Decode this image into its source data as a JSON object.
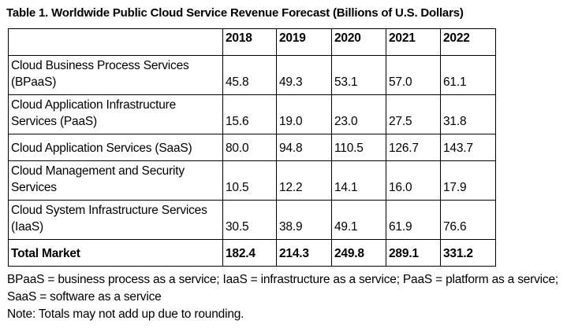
{
  "title": "Table 1. Worldwide Public Cloud Service Revenue Forecast (Billions of U.S. Dollars)",
  "table": {
    "corner_label": "",
    "years": [
      "2018",
      "2019",
      "2020",
      "2021",
      "2022"
    ],
    "rows": [
      {
        "label": "Cloud Business Process Services (BPaaS)",
        "values": [
          "45.8",
          "49.3",
          "53.1",
          "57.0",
          "61.1"
        ]
      },
      {
        "label": "Cloud Application Infrastructure Services (PaaS)",
        "values": [
          "15.6",
          "19.0",
          "23.0",
          "27.5",
          "31.8"
        ]
      },
      {
        "label": "Cloud Application Services (SaaS)",
        "values": [
          "80.0",
          "94.8",
          "110.5",
          "126.7",
          "143.7"
        ]
      },
      {
        "label": "Cloud Management and Security Services",
        "values": [
          "10.5",
          "12.2",
          "14.1",
          "16.0",
          "17.9"
        ]
      },
      {
        "label": "Cloud System Infrastructure Services (IaaS)",
        "values": [
          "30.5",
          "38.9",
          "49.1",
          "61.9",
          "76.6"
        ]
      }
    ],
    "total": {
      "label": "Total Market",
      "values": [
        "182.4",
        "214.3",
        "249.8",
        "289.1",
        "331.2"
      ]
    }
  },
  "footnotes": [
    "BPaaS = business process as a service; IaaS = infrastructure as a service; PaaS = platform as a service; SaaS = software as a service",
    "Note: Totals may not add up due to rounding."
  ],
  "colors": {
    "text": "#000000",
    "background": "#ffffff",
    "border": "#000000"
  },
  "chart_data": {
    "type": "table",
    "title": "Table 1. Worldwide Public Cloud Service Revenue Forecast (Billions of U.S. Dollars)",
    "unit": "Billions of U.S. Dollars",
    "categories": [
      "2018",
      "2019",
      "2020",
      "2021",
      "2022"
    ],
    "series": [
      {
        "name": "Cloud Business Process Services (BPaaS)",
        "values": [
          45.8,
          49.3,
          53.1,
          57.0,
          61.1
        ]
      },
      {
        "name": "Cloud Application Infrastructure Services (PaaS)",
        "values": [
          15.6,
          19.0,
          23.0,
          27.5,
          31.8
        ]
      },
      {
        "name": "Cloud Application Services (SaaS)",
        "values": [
          80.0,
          94.8,
          110.5,
          126.7,
          143.7
        ]
      },
      {
        "name": "Cloud Management and Security Services",
        "values": [
          10.5,
          12.2,
          14.1,
          16.0,
          17.9
        ]
      },
      {
        "name": "Cloud System Infrastructure Services (IaaS)",
        "values": [
          30.5,
          38.9,
          49.1,
          61.9,
          76.6
        ]
      },
      {
        "name": "Total Market",
        "values": [
          182.4,
          214.3,
          249.8,
          289.1,
          331.2
        ]
      }
    ],
    "notes": [
      "BPaaS = business process as a service; IaaS = infrastructure as a service; PaaS = platform as a service; SaaS = software as a service",
      "Note: Totals may not add up due to rounding."
    ]
  }
}
